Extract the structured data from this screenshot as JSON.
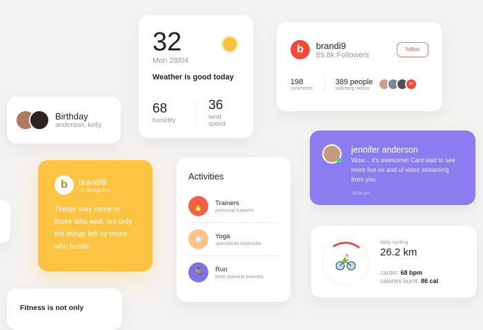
{
  "birthday": {
    "title": "Birthday",
    "names": "anderson, kelly"
  },
  "weather": {
    "temp": "32",
    "date": "Mon 28/04",
    "summary": "Weather is good today",
    "humidity": "68",
    "humidity_label": "humidity",
    "wind": "36",
    "wind_label": "wind speed",
    "icon": "sun-icon"
  },
  "profile": {
    "logo": "b",
    "name": "brandi9",
    "followers": "89.8k Followers",
    "follow_label": "follow",
    "comments": "198",
    "comments_label": "comments",
    "watching": "389 people",
    "watching_label": "watching videos",
    "more": "8+"
  },
  "message": {
    "name": "jennifer anderson",
    "text": "Wow... it's awesome! Cant wait to see more live ux and ui video streaming from you.",
    "time": "18:09 pm"
  },
  "quote": {
    "logo": "b",
    "name": "brandi9",
    "role": "ux designers",
    "text": "Things may come to those who wait, but only the things left by those who hustle."
  },
  "activities": {
    "title": "Activities",
    "items": [
      {
        "title": "Trainers",
        "sub": "personal trainers",
        "icon": "flame-icon",
        "color": "#f0604a"
      },
      {
        "title": "Yoga",
        "sub": "specialists instructor",
        "icon": "lotus-icon",
        "color": "#f6c48a"
      },
      {
        "title": "Run",
        "sub": "best stamina trainers",
        "icon": "runner-icon",
        "color": "#7f72e6"
      }
    ]
  },
  "cycling": {
    "label": "daily cycling",
    "distance": "26.2 km",
    "cardio_label": "cardio:",
    "cardio": "68 bpm",
    "cal_label": "calories burnt:",
    "cal": "86 cal",
    "icon": "bicycle-icon"
  },
  "fitness": {
    "title": "Fitness is not only"
  },
  "colors": {
    "accent_red": "#ef4a38",
    "purple": "#8b7cf0",
    "yellow": "#fdc444"
  }
}
